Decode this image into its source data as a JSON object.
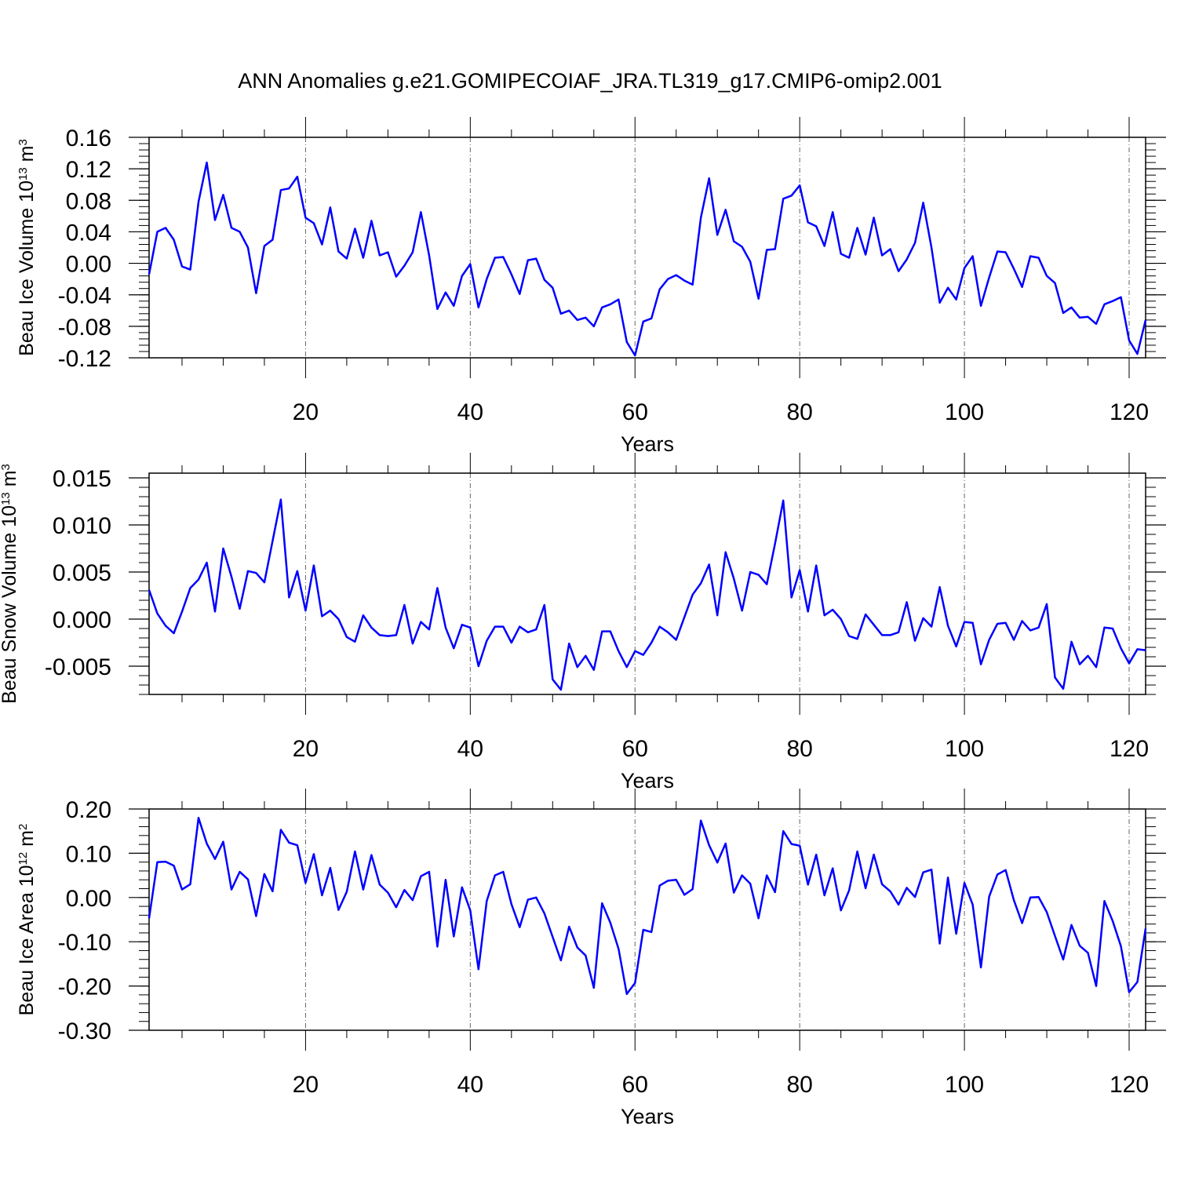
{
  "title": "ANN Anomalies g.e21.GOMIPECOIAF_JRA.TL319_g17.CMIP6-omip2.001",
  "line_color": "#0000ff",
  "chart_data": [
    {
      "type": "line",
      "ylabel": {
        "main": "Beau Ice Volume 10",
        "exp": "13",
        "unit": " m",
        "unit_exp": "3"
      },
      "xlabel": "Years",
      "xlim": [
        1,
        122
      ],
      "xticks": [
        20,
        40,
        60,
        80,
        100,
        120
      ],
      "xtick_labels": [
        "20",
        "40",
        "60",
        "80",
        "100",
        "120"
      ],
      "ylim": [
        -0.12,
        0.16
      ],
      "yticks": [
        -0.12,
        -0.08,
        -0.04,
        0.0,
        0.04,
        0.08,
        0.12,
        0.16
      ],
      "ytick_labels": [
        "-0.12",
        "-0.08",
        "-0.04",
        "0.00",
        "0.04",
        "0.08",
        "0.12",
        "0.16"
      ],
      "minor_step": 0.008,
      "series": [
        {
          "name": "Beau Ice Volume",
          "x_start": 1,
          "values": [
            -0.014,
            0.04,
            0.045,
            0.03,
            -0.004,
            -0.008,
            0.078,
            0.128,
            0.055,
            0.087,
            0.045,
            0.04,
            0.02,
            -0.038,
            0.022,
            0.03,
            0.093,
            0.095,
            0.11,
            0.058,
            0.051,
            0.024,
            0.071,
            0.015,
            0.006,
            0.044,
            0.007,
            0.054,
            0.01,
            0.014,
            -0.017,
            -0.003,
            0.014,
            0.065,
            0.01,
            -0.058,
            -0.037,
            -0.054,
            -0.016,
            -0.001,
            -0.056,
            -0.02,
            0.007,
            0.008,
            -0.014,
            -0.039,
            0.004,
            0.006,
            -0.021,
            -0.031,
            -0.064,
            -0.06,
            -0.072,
            -0.069,
            -0.08,
            -0.056,
            -0.052,
            -0.046,
            -0.1,
            -0.117,
            -0.074,
            -0.07,
            -0.033,
            -0.02,
            -0.015,
            -0.022,
            -0.027,
            0.058,
            0.108,
            0.036,
            0.068,
            0.028,
            0.021,
            0.002,
            -0.045,
            0.017,
            0.018,
            0.082,
            0.086,
            0.099,
            0.052,
            0.047,
            0.022,
            0.065,
            0.012,
            0.007,
            0.045,
            0.011,
            0.058,
            0.01,
            0.018,
            -0.01,
            0.005,
            0.026,
            0.077,
            0.02,
            -0.05,
            -0.031,
            -0.046,
            -0.006,
            0.009,
            -0.054,
            -0.018,
            0.015,
            0.014,
            -0.007,
            -0.03,
            0.009,
            0.007,
            -0.016,
            -0.025,
            -0.063,
            -0.056,
            -0.069,
            -0.068,
            -0.077,
            -0.052,
            -0.048,
            -0.043,
            -0.098,
            -0.115,
            -0.072
          ]
        }
      ]
    },
    {
      "type": "line",
      "ylabel": {
        "main": "Beau Snow Volume 10",
        "exp": "13",
        "unit": " m",
        "unit_exp": "3"
      },
      "xlabel": "Years",
      "xlim": [
        1,
        122
      ],
      "xticks": [
        20,
        40,
        60,
        80,
        100,
        120
      ],
      "xtick_labels": [
        "20",
        "40",
        "60",
        "80",
        "100",
        "120"
      ],
      "ylim": [
        -0.008,
        0.0155
      ],
      "yticks": [
        -0.005,
        0.0,
        0.005,
        0.01,
        0.015
      ],
      "ytick_labels": [
        "-0.005",
        "0.000",
        "0.005",
        "0.010",
        "0.015"
      ],
      "minor_step": 0.001,
      "series": [
        {
          "name": "Beau Snow Volume",
          "x_start": 1,
          "values": [
            0.0031,
            0.0006,
            -0.0007,
            -0.0015,
            0.0008,
            0.0033,
            0.0042,
            0.006,
            0.0008,
            0.0075,
            0.0045,
            0.0011,
            0.0051,
            0.0049,
            0.0039,
            0.0083,
            0.0127,
            0.0023,
            0.0051,
            0.0009,
            0.0057,
            0.0003,
            0.0009,
            0.0,
            -0.0019,
            -0.0024,
            0.0004,
            -0.0009,
            -0.0017,
            -0.0018,
            -0.0017,
            0.0015,
            -0.0026,
            -0.0003,
            -0.0011,
            0.0033,
            -0.0009,
            -0.0031,
            -0.0006,
            -0.0009,
            -0.005,
            -0.0023,
            -0.0008,
            -0.0008,
            -0.0025,
            -0.0008,
            -0.0014,
            -0.0011,
            0.0015,
            -0.0064,
            -0.0075,
            -0.0026,
            -0.0051,
            -0.0039,
            -0.0054,
            -0.0013,
            -0.0013,
            -0.0034,
            -0.0051,
            -0.0034,
            -0.0038,
            -0.0025,
            -0.0008,
            -0.0014,
            -0.0022,
            0.0002,
            0.0026,
            0.0038,
            0.0058,
            0.0004,
            0.0071,
            0.0043,
            0.0009,
            0.005,
            0.0047,
            0.0037,
            0.008,
            0.0126,
            0.0023,
            0.0052,
            0.0008,
            0.0057,
            0.0004,
            0.001,
            0.0,
            -0.0018,
            -0.0021,
            0.0005,
            -0.0006,
            -0.0017,
            -0.0017,
            -0.0014,
            0.0018,
            -0.0023,
            0.0001,
            -0.0008,
            0.0034,
            -0.0007,
            -0.0029,
            -0.0003,
            -0.0004,
            -0.0048,
            -0.0022,
            -0.0005,
            -0.0004,
            -0.0022,
            -0.0002,
            -0.0012,
            -0.0009,
            0.0016,
            -0.0062,
            -0.0074,
            -0.0024,
            -0.0048,
            -0.0039,
            -0.0051,
            -0.0009,
            -0.001,
            -0.0031,
            -0.0047,
            -0.0032,
            -0.0033
          ]
        }
      ]
    },
    {
      "type": "line",
      "ylabel": {
        "main": "Beau Ice Area 10",
        "exp": "12",
        "unit": " m",
        "unit_exp": "2"
      },
      "xlabel": "Years",
      "xlim": [
        1,
        122
      ],
      "xticks": [
        20,
        40,
        60,
        80,
        100,
        120
      ],
      "xtick_labels": [
        "20",
        "40",
        "60",
        "80",
        "100",
        "120"
      ],
      "ylim": [
        -0.3,
        0.2
      ],
      "yticks": [
        -0.3,
        -0.2,
        -0.1,
        0.0,
        0.1,
        0.2
      ],
      "ytick_labels": [
        "-0.30",
        "-0.20",
        "-0.10",
        "0.00",
        "0.10",
        "0.20"
      ],
      "minor_step": 0.02,
      "series": [
        {
          "name": "Beau Ice Area",
          "x_start": 1,
          "values": [
            -0.047,
            0.08,
            0.081,
            0.072,
            0.018,
            0.03,
            0.18,
            0.122,
            0.087,
            0.126,
            0.018,
            0.058,
            0.041,
            -0.042,
            0.053,
            0.014,
            0.153,
            0.124,
            0.118,
            0.033,
            0.098,
            0.005,
            0.067,
            -0.028,
            0.013,
            0.104,
            0.018,
            0.096,
            0.029,
            0.011,
            -0.022,
            0.017,
            -0.006,
            0.048,
            0.058,
            -0.111,
            0.04,
            -0.088,
            0.023,
            -0.029,
            -0.162,
            -0.008,
            0.05,
            0.058,
            -0.015,
            -0.067,
            -0.005,
            0.0,
            -0.036,
            -0.089,
            -0.142,
            -0.066,
            -0.113,
            -0.131,
            -0.204,
            -0.013,
            -0.057,
            -0.116,
            -0.218,
            -0.193,
            -0.073,
            -0.078,
            0.027,
            0.038,
            0.04,
            0.006,
            0.019,
            0.174,
            0.118,
            0.079,
            0.122,
            0.011,
            0.05,
            0.031,
            -0.047,
            0.05,
            0.012,
            0.15,
            0.121,
            0.117,
            0.029,
            0.097,
            0.005,
            0.066,
            -0.029,
            0.016,
            0.104,
            0.021,
            0.097,
            0.03,
            0.014,
            -0.016,
            0.022,
            0.001,
            0.057,
            0.063,
            -0.104,
            0.045,
            -0.082,
            0.033,
            -0.016,
            -0.158,
            0.002,
            0.052,
            0.062,
            -0.006,
            -0.058,
            0.0,
            0.001,
            -0.033,
            -0.087,
            -0.14,
            -0.062,
            -0.109,
            -0.125,
            -0.2,
            -0.008,
            -0.053,
            -0.11,
            -0.214,
            -0.191,
            -0.07
          ]
        }
      ]
    }
  ]
}
